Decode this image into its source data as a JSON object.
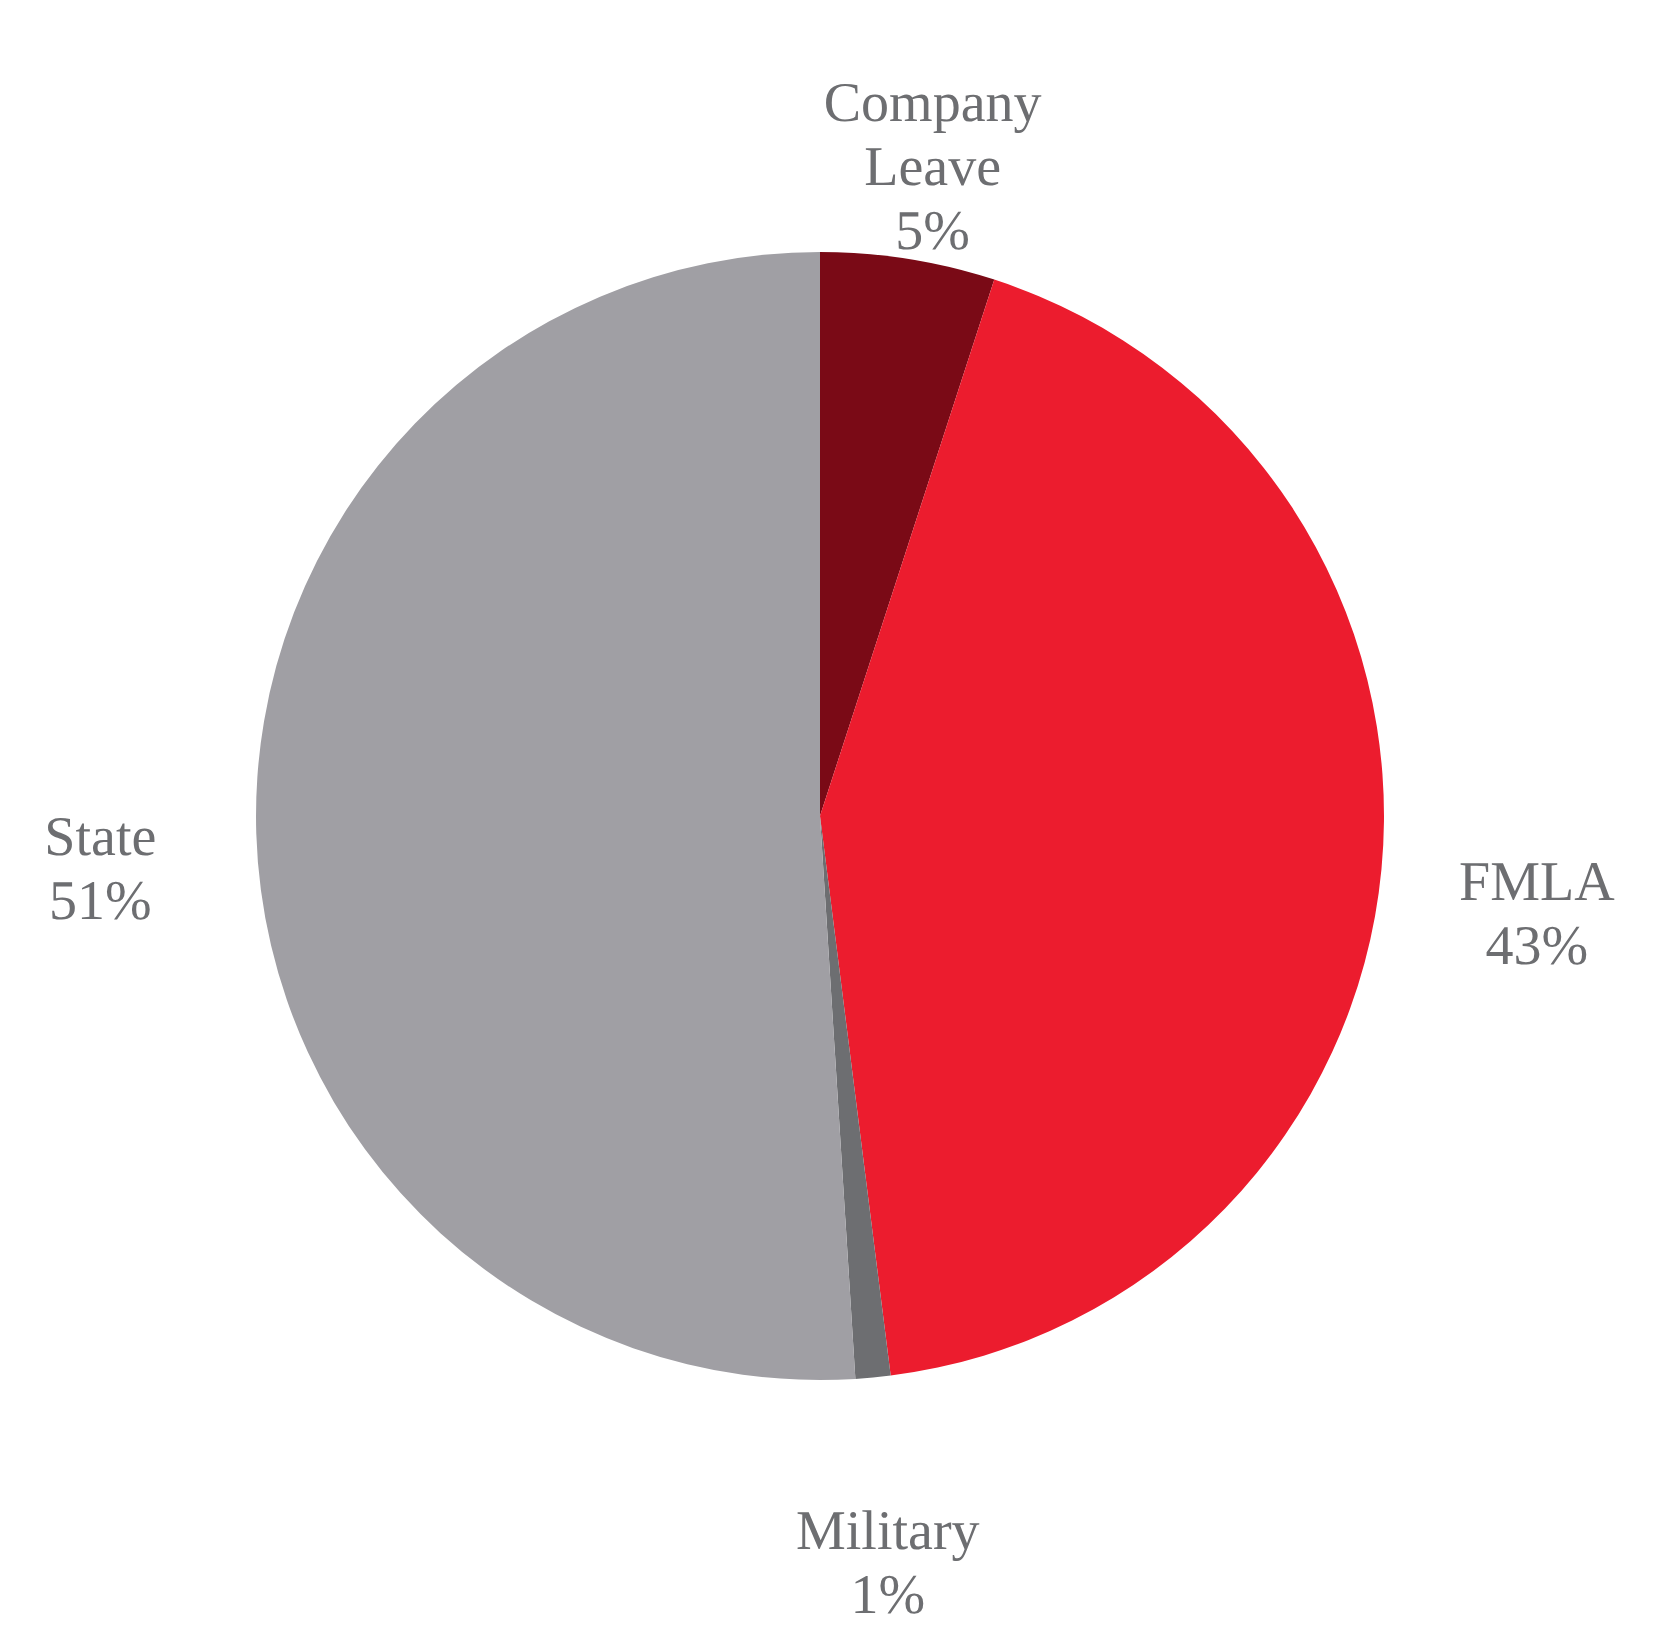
{
  "chart_data": {
    "type": "pie",
    "categories": [
      "Company Leave",
      "FMLA",
      "Military",
      "State"
    ],
    "values": [
      5,
      43,
      1,
      51
    ],
    "value_labels": [
      "5%",
      "43%",
      "1%",
      "51%"
    ],
    "colors": [
      "#7a0a16",
      "#ec1c2e",
      "#6d6e71",
      "#a09fa4"
    ]
  }
}
